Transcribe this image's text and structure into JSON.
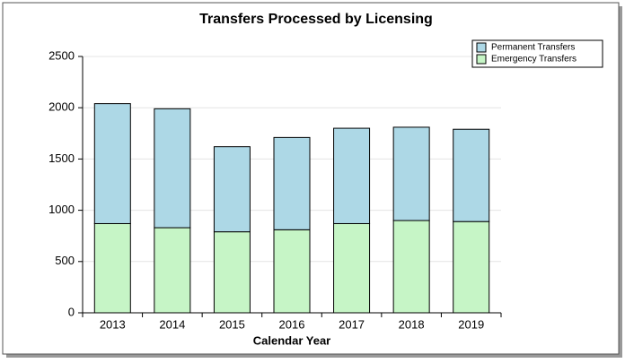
{
  "chart_data": {
    "type": "stacked_bar",
    "title": "Transfers Processed by Licensing",
    "x_label": "Calendar Year",
    "categories": [
      "2013",
      "2014",
      "2015",
      "2016",
      "2017",
      "2018",
      "2019"
    ],
    "series": [
      {
        "name": "Emergency Transfers",
        "color": "#c6f5c6",
        "values": [
          870,
          830,
          790,
          810,
          870,
          900,
          890
        ]
      },
      {
        "name": "Permanent Transfers",
        "color": "#add8e6",
        "values": [
          1170,
          1160,
          830,
          900,
          930,
          910,
          900
        ]
      }
    ],
    "ylim": [
      0,
      2500
    ],
    "yticks": [
      0,
      500,
      1000,
      1500,
      2000,
      2500
    ],
    "grid": true,
    "legend": "upper right"
  }
}
